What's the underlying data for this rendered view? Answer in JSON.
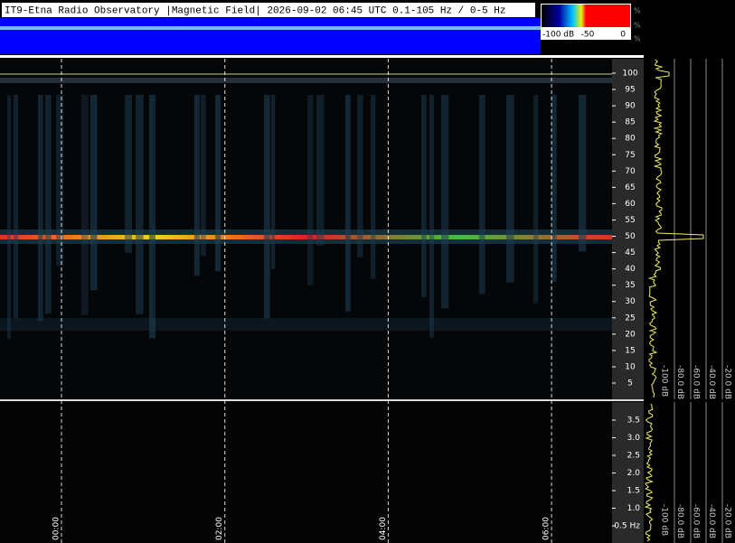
{
  "header": {
    "title": "IT9-Etna Radio Observatory |Magnetic Field| 2026-09-02 06:45 UTC 0.1-105 Hz / 0-5 Hz"
  },
  "color_scale": {
    "labels": [
      "-100 dB",
      "-50",
      "0"
    ],
    "percent": [
      "%",
      "%",
      "%"
    ]
  },
  "upper_axis": {
    "ticks": [
      "100",
      "95",
      "90",
      "85",
      "80",
      "75",
      "70",
      "65",
      "60",
      "55",
      "50",
      "45",
      "40",
      "35",
      "30",
      "25",
      "20",
      "15",
      "10",
      "5"
    ]
  },
  "lower_axis": {
    "ticks": [
      "3.5",
      "3.0",
      "2.5",
      "2.0",
      "1.5",
      "1.0",
      "0.5 Hz"
    ]
  },
  "time_axis": {
    "ticks": [
      "00:00",
      "02:00",
      "04:00",
      "06:00"
    ]
  },
  "level_axis": {
    "upper": [
      "-100 dB",
      "-80.0 dB",
      "-60.0 dB",
      "-40.0 dB",
      "-20.0 dB"
    ],
    "lower": [
      "-100 dB",
      "-80.0 dB",
      "-60.0 dB",
      "-40.0 dB",
      "-20.0 dB"
    ]
  }
}
